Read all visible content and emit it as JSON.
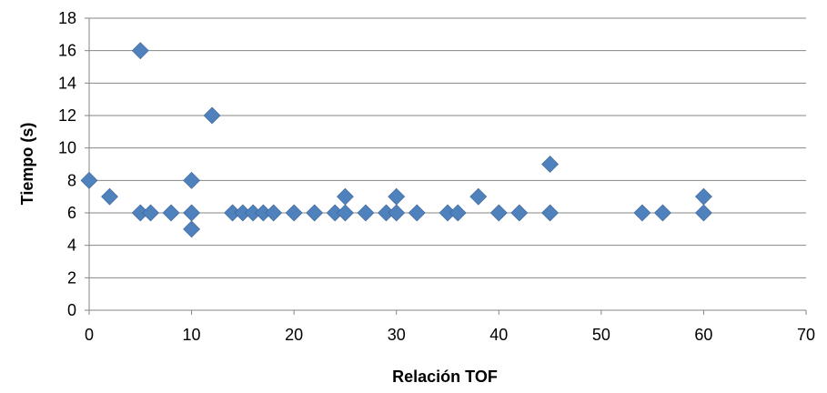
{
  "chart_data": {
    "type": "scatter",
    "title": "",
    "xlabel": "Relación TOF",
    "ylabel": "Tiempo (s)",
    "xlim": [
      0,
      70
    ],
    "ylim": [
      0,
      18
    ],
    "xticks": [
      0,
      10,
      20,
      30,
      40,
      50,
      60,
      70
    ],
    "yticks": [
      0,
      2,
      4,
      6,
      8,
      10,
      12,
      14,
      16,
      18
    ],
    "grid": "horizontal",
    "legend": "none",
    "marker": "diamond",
    "colors": {
      "marker": "#4f81bd",
      "grid": "#868686",
      "axis": "#868686"
    },
    "series": [
      {
        "points": [
          [
            0,
            8
          ],
          [
            2,
            7
          ],
          [
            5,
            16
          ],
          [
            5,
            6
          ],
          [
            6,
            6
          ],
          [
            8,
            6
          ],
          [
            10,
            8
          ],
          [
            10,
            6
          ],
          [
            10,
            5
          ],
          [
            12,
            12
          ],
          [
            14,
            6
          ],
          [
            15,
            6
          ],
          [
            16,
            6
          ],
          [
            17,
            6
          ],
          [
            18,
            6
          ],
          [
            20,
            6
          ],
          [
            22,
            6
          ],
          [
            24,
            6
          ],
          [
            25,
            7
          ],
          [
            25,
            6
          ],
          [
            27,
            6
          ],
          [
            29,
            6
          ],
          [
            30,
            7
          ],
          [
            30,
            6
          ],
          [
            32,
            6
          ],
          [
            35,
            6
          ],
          [
            36,
            6
          ],
          [
            38,
            7
          ],
          [
            40,
            6
          ],
          [
            42,
            6
          ],
          [
            45,
            9
          ],
          [
            45,
            6
          ],
          [
            54,
            6
          ],
          [
            56,
            6
          ],
          [
            60,
            7
          ],
          [
            60,
            6
          ]
        ]
      }
    ]
  }
}
